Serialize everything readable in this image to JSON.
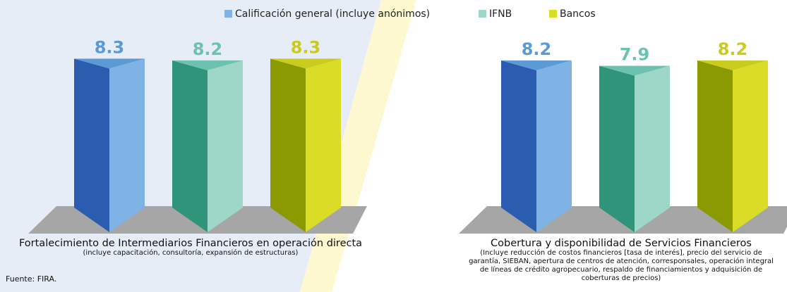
{
  "chart_data": {
    "type": "bar",
    "categories": [
      "Fortalecimiento de Intermediarios Financieros en operación directa",
      "Cobertura y disponibilidad de Servicios Financieros"
    ],
    "category_notes": [
      "(incluye capacitación, consultoría, expansión de estructuras)",
      "(Incluye reducción de costos financieros [tasa de interés], precio del servicio de garantía, SIEBAN, apertura de centros de atención, corresponsales, operación integral de líneas de crédito agropecuario, respaldo de financiamientos y adquisición de coberturas de precios)"
    ],
    "series": [
      {
        "name": "Calificación general (incluye anónimos)",
        "color": "#7fb2e5",
        "dark_color": "#2a5db0",
        "label_color": "#5b9bd5",
        "values": [
          8.3,
          8.2
        ]
      },
      {
        "name": "IFNB",
        "color": "#9ed6c8",
        "dark_color": "#2f9479",
        "label_color": "#6cc2ae",
        "values": [
          8.2,
          7.9
        ]
      },
      {
        "name": "Bancos",
        "color": "#d9dd25",
        "dark_color": "#8a9a00",
        "label_color": "#c9cc1c",
        "values": [
          8.3,
          8.2
        ]
      }
    ],
    "source": "Fuente: FIRA."
  }
}
